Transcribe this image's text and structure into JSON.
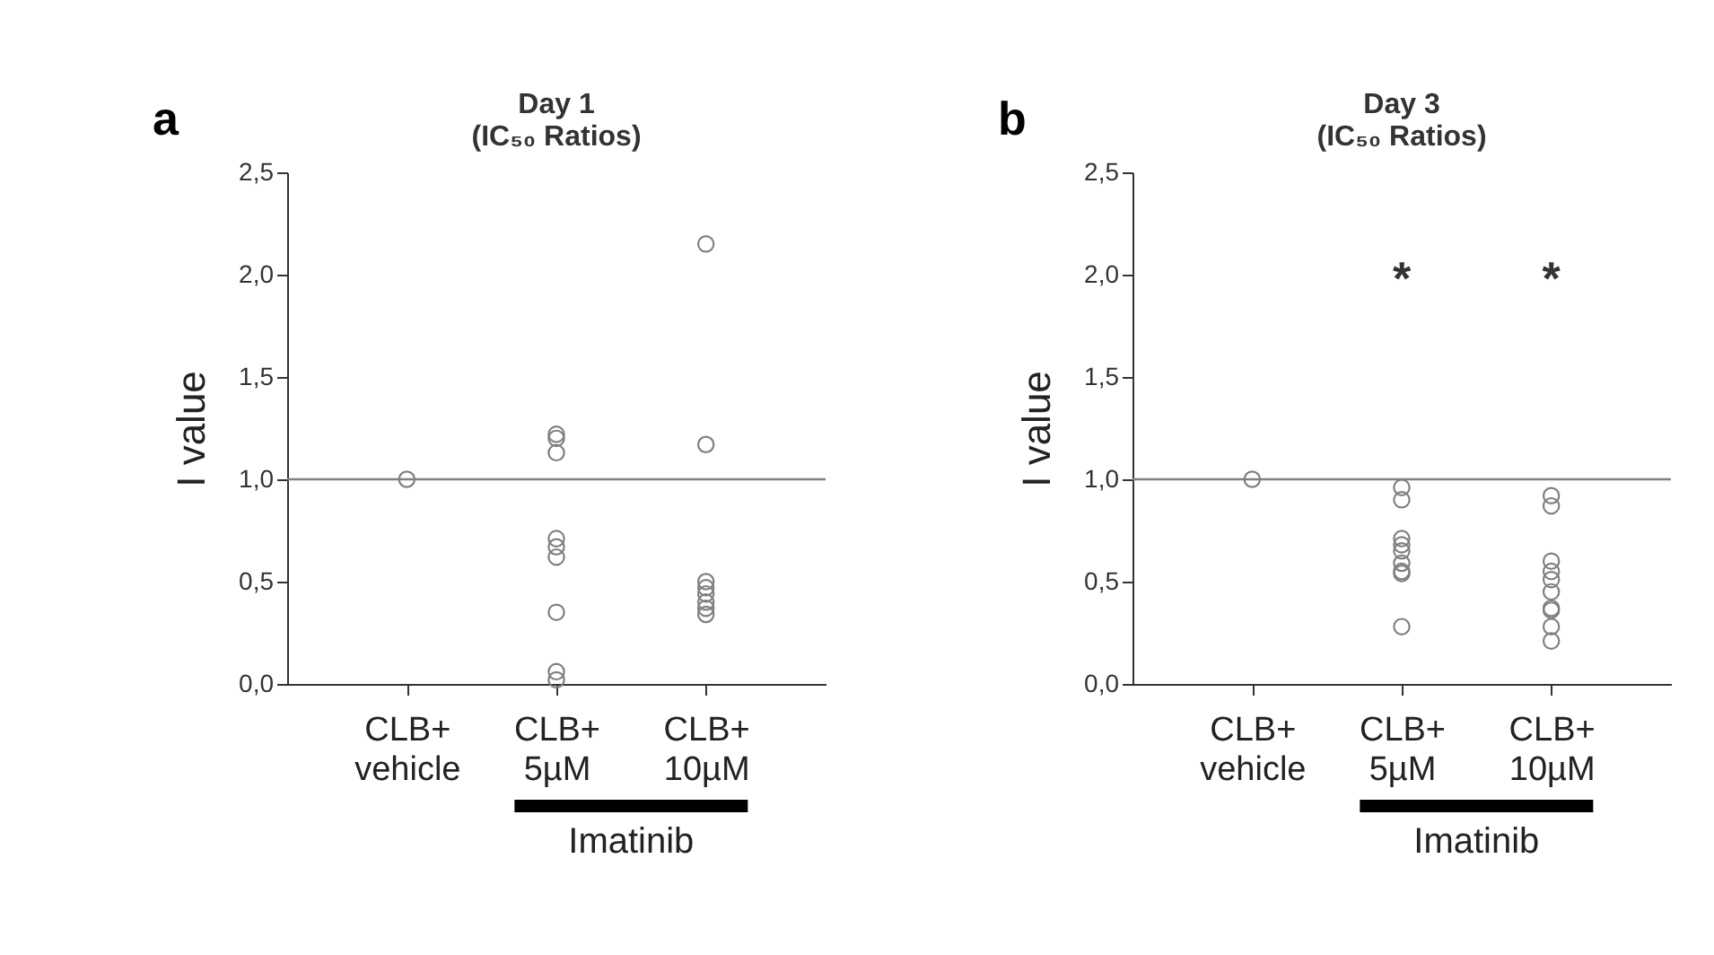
{
  "chart_data": [
    {
      "type": "scatter",
      "title": "Day 1\n(IC₅₀ Ratios)",
      "ylabel": "I value",
      "categories": [
        "CLB+\nvehicle",
        "CLB+\n5µM",
        "CLB+\n10µM"
      ],
      "series": [
        {
          "color": "#808080",
          "x": [
            "CLB+\nvehicle",
            "CLB+\n5µM",
            "CLB+\n5µM",
            "CLB+\n5µM",
            "CLB+\n5µM",
            "CLB+\n5µM",
            "CLB+\n5µM",
            "CLB+\n5µM",
            "CLB+\n5µM",
            "CLB+\n5µM",
            "CLB+\n10µM",
            "CLB+\n10µM",
            "CLB+\n10µM",
            "CLB+\n10µM",
            "CLB+\n10µM",
            "CLB+\n10µM",
            "CLB+\n10µM",
            "CLB+\n10µM"
          ],
          "values": [
            1.0,
            1.22,
            1.2,
            1.13,
            0.71,
            0.67,
            0.62,
            0.35,
            0.06,
            0.02,
            2.15,
            1.17,
            0.5,
            0.47,
            0.44,
            0.4,
            0.37,
            0.34
          ]
        }
      ],
      "ylim": [
        0,
        2.5
      ],
      "yticks": [
        {
          "value": 0,
          "label": "0,0"
        },
        {
          "value": 0.5,
          "label": "0,5"
        },
        {
          "value": 1,
          "label": "1,0"
        },
        {
          "value": 1.5,
          "label": "1,5"
        },
        {
          "value": 2,
          "label": "2,0"
        },
        {
          "value": 2.5,
          "label": "2,5"
        }
      ],
      "marker": "circle",
      "grid": false,
      "ref_lines": [
        {
          "axis": "y",
          "value": 1.0,
          "color": "#808080"
        }
      ],
      "annotations": [
        "a",
        "Imatinib"
      ]
    },
    {
      "type": "scatter",
      "title": "Day 3\n(IC₅₀ Ratios)",
      "ylabel": "I value",
      "categories": [
        "CLB+\nvehicle",
        "CLB+\n5µM",
        "CLB+\n10µM"
      ],
      "series": [
        {
          "color": "#808080",
          "x": [
            "CLB+\nvehicle",
            "CLB+\n5µM",
            "CLB+\n5µM",
            "CLB+\n5µM",
            "CLB+\n5µM",
            "CLB+\n5µM",
            "CLB+\n5µM",
            "CLB+\n5µM",
            "CLB+\n5µM",
            "CLB+\n5µM",
            "CLB+\n10µM",
            "CLB+\n10µM",
            "CLB+\n10µM",
            "CLB+\n10µM",
            "CLB+\n10µM",
            "CLB+\n10µM",
            "CLB+\n10µM",
            "CLB+\n10µM",
            "CLB+\n10µM",
            "CLB+\n10µM"
          ],
          "values": [
            1.0,
            0.96,
            0.9,
            0.71,
            0.68,
            0.65,
            0.59,
            0.55,
            0.54,
            0.28,
            0.92,
            0.87,
            0.6,
            0.55,
            0.51,
            0.45,
            0.37,
            0.36,
            0.28,
            0.21
          ]
        }
      ],
      "ylim": [
        0,
        2.5
      ],
      "yticks": [
        {
          "value": 0,
          "label": "0,0"
        },
        {
          "value": 0.5,
          "label": "0,5"
        },
        {
          "value": 1,
          "label": "1,0"
        },
        {
          "value": 1.5,
          "label": "1,5"
        },
        {
          "value": 2,
          "label": "2,0"
        },
        {
          "value": 2.5,
          "label": "2,5"
        }
      ],
      "marker": "circle",
      "grid": false,
      "ref_lines": [
        {
          "axis": "y",
          "value": 1.0,
          "color": "#808080"
        }
      ],
      "annotations": [
        "b",
        "Imatinib",
        "*",
        "*"
      ]
    }
  ]
}
